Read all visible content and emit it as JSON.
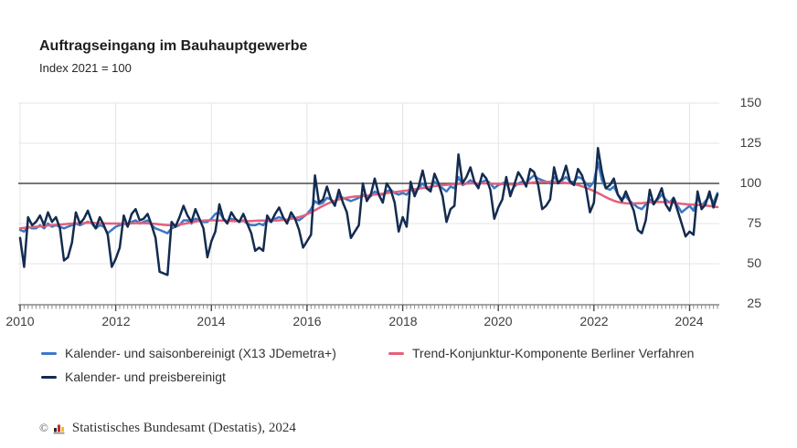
{
  "title": "Auftragseingang im Bauhauptgewerbe",
  "subtitle": "Index 2021 = 100",
  "footer": {
    "copyright": "©",
    "source": "Statistisches Bundesamt (Destatis), 2024"
  },
  "colors": {
    "blue_series": "#3d77c4",
    "red_series": "#e5607a",
    "navy_series": "#132b50",
    "grid": "#e4e4e4",
    "reference_line": "#4a4a4a",
    "axis": "#6e6e6e",
    "tick_minor": "#8a8a8a",
    "tick_major": "#4a4a4a",
    "label_text": "#3d3d3d"
  },
  "chart_data": {
    "type": "line",
    "title": "Auftragseingang im Bauhauptgewerbe",
    "subtitle": "Index 2021 = 100",
    "frequency": "monthly",
    "x_start": "2010-01",
    "x_end": "2024-08",
    "x_tick_labels": [
      "2010",
      "2012",
      "2014",
      "2016",
      "2018",
      "2020",
      "2022",
      "2024"
    ],
    "y_ticks": [
      25,
      50,
      75,
      100,
      125,
      150
    ],
    "ylim": [
      25,
      150
    ],
    "reference_line": 100,
    "grid": true,
    "legend_position": "bottom",
    "series": [
      {
        "name": "Kalender- und saisonbereinigt (X13 JDemetra+)",
        "color": "#3d77c4",
        "values": [
          71,
          70,
          73,
          72,
          72,
          74,
          72,
          75,
          73,
          74,
          73,
          72,
          73,
          74,
          75,
          74,
          75,
          76,
          75,
          72,
          74,
          73,
          69,
          71,
          73,
          74,
          75,
          74,
          76,
          77,
          75,
          76,
          77,
          74,
          72,
          71,
          70,
          69,
          72,
          73,
          74,
          77,
          77,
          75,
          78,
          77,
          76,
          76,
          78,
          81,
          82,
          78,
          76,
          78,
          77,
          76,
          77,
          75,
          74,
          74,
          75,
          74,
          77,
          76,
          78,
          79,
          78,
          76,
          79,
          78,
          77,
          79,
          81,
          84,
          89,
          87,
          88,
          91,
          90,
          88,
          92,
          91,
          90,
          89,
          90,
          91,
          93,
          91,
          92,
          95,
          93,
          93,
          95,
          96,
          94,
          93,
          94,
          93,
          96,
          95,
          97,
          100,
          97,
          97,
          101,
          99,
          97,
          95,
          98,
          97,
          104,
          99,
          100,
          102,
          100,
          99,
          101,
          102,
          100,
          97,
          99,
          100,
          101,
          94,
          98,
          100,
          101,
          100,
          103,
          105,
          103,
          102,
          101,
          100,
          104,
          101,
          102,
          104,
          101,
          101,
          104,
          103,
          100,
          98,
          101,
          113,
          102,
          97,
          96,
          98,
          93,
          90,
          92,
          89,
          87,
          85,
          84,
          87,
          90,
          87,
          90,
          93,
          90,
          88,
          91,
          86,
          82,
          84,
          86,
          83,
          91,
          86,
          89,
          92,
          88,
          94
        ]
      },
      {
        "name": "Trend-Konjunktur-Komponente Berliner Verfahren",
        "color": "#e5607a",
        "values": [
          72,
          72.3,
          72.5,
          72.8,
          73,
          73.2,
          73.5,
          73.8,
          74,
          74.2,
          74.4,
          74.6,
          74.8,
          75,
          75.1,
          75.2,
          75.3,
          75.4,
          75.4,
          75.3,
          75.2,
          75.1,
          75,
          75,
          75,
          75,
          75,
          75,
          75.1,
          75.2,
          75.2,
          75.2,
          75.1,
          75,
          74.8,
          74.5,
          74.2,
          74,
          74,
          74.1,
          74.4,
          74.8,
          75.2,
          75.7,
          76.2,
          76.6,
          76.9,
          77,
          77,
          77,
          76.9,
          76.8,
          76.7,
          76.6,
          76.5,
          76.5,
          76.5,
          76.5,
          76.6,
          76.7,
          76.8,
          76.8,
          76.8,
          76.8,
          76.9,
          77,
          77.2,
          77.5,
          77.9,
          78.4,
          79,
          79.8,
          80.8,
          82,
          83.3,
          84.7,
          86,
          87.2,
          88.3,
          89.2,
          90,
          90.6,
          91.1,
          91.5,
          91.8,
          92,
          92.2,
          92.4,
          92.7,
          93,
          93.3,
          93.6,
          94,
          94.3,
          94.6,
          94.9,
          95.2,
          95.5,
          95.9,
          96.3,
          96.7,
          97.1,
          97.5,
          97.9,
          98.3,
          98.6,
          98.9,
          99.1,
          99.3,
          99.5,
          99.7,
          99.8,
          99.9,
          100,
          100,
          100,
          100,
          100,
          99.9,
          99.8,
          99.7,
          99.6,
          99.5,
          99.4,
          99.4,
          99.5,
          99.7,
          100,
          100.3,
          100.6,
          100.8,
          100.9,
          101,
          101,
          100.9,
          100.8,
          100.6,
          100.3,
          100,
          99.5,
          99,
          98.2,
          97.3,
          96.3,
          95.2,
          94,
          92.7,
          91.4,
          90.2,
          89.2,
          88.4,
          87.9,
          87.6,
          87.5,
          87.5,
          87.6,
          87.7,
          87.9,
          88.1,
          88.3,
          88.4,
          88.4,
          88.3,
          88.1,
          87.9,
          87.6,
          87.3,
          87.1,
          86.9,
          86.8,
          86.6,
          86.4,
          86.2,
          85.9,
          85.6,
          85.2
        ]
      },
      {
        "name": "Kalender- und preisbereinigt",
        "color": "#132b50",
        "values": [
          66,
          48,
          79,
          74,
          76,
          80,
          74,
          82,
          76,
          79,
          72,
          52,
          54,
          63,
          82,
          75,
          78,
          83,
          76,
          72,
          79,
          74,
          68,
          48,
          53,
          60,
          80,
          73,
          81,
          84,
          77,
          78,
          81,
          74,
          66,
          45,
          44,
          43,
          76,
          73,
          79,
          86,
          80,
          76,
          84,
          78,
          72,
          54,
          64,
          70,
          87,
          78,
          75,
          82,
          78,
          76,
          81,
          75,
          69,
          58,
          60,
          58,
          80,
          76,
          81,
          85,
          79,
          75,
          82,
          78,
          71,
          60,
          64,
          68,
          105,
          88,
          90,
          98,
          90,
          86,
          96,
          88,
          82,
          66,
          70,
          74,
          100,
          89,
          93,
          103,
          93,
          88,
          100,
          96,
          88,
          70,
          79,
          73,
          101,
          92,
          98,
          108,
          97,
          95,
          106,
          100,
          92,
          76,
          84,
          86,
          118,
          100,
          104,
          110,
          101,
          97,
          106,
          103,
          96,
          78,
          85,
          90,
          104,
          92,
          99,
          107,
          103,
          98,
          109,
          107,
          99,
          84,
          86,
          90,
          110,
          100,
          103,
          111,
          101,
          99,
          109,
          105,
          97,
          82,
          88,
          122,
          107,
          97,
          99,
          103,
          93,
          89,
          95,
          89,
          83,
          71,
          69,
          77,
          96,
          87,
          91,
          97,
          87,
          83,
          91,
          83,
          75,
          67,
          70,
          68,
          95,
          84,
          87,
          95,
          85,
          93
        ]
      }
    ]
  }
}
